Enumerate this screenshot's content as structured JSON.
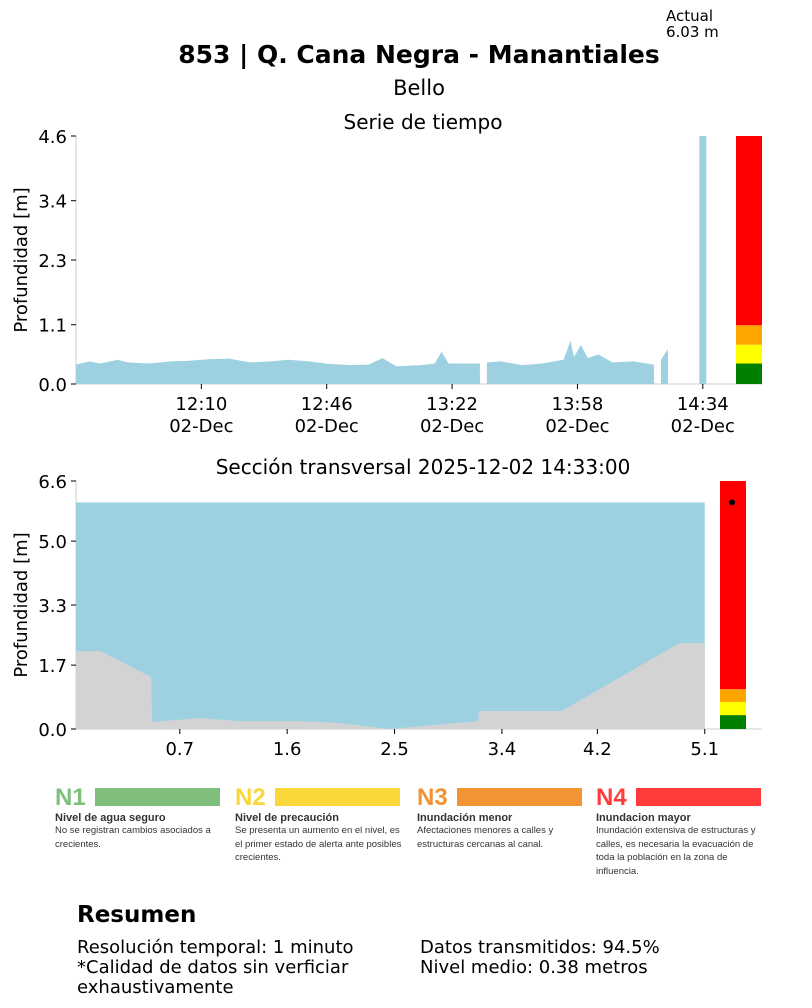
{
  "header": {
    "title": "853 | Q. Cana Negra - Manantiales",
    "subtitle": "Bello",
    "actual_label": "Actual",
    "actual_value": "6.03 m"
  },
  "chart_data": [
    {
      "type": "area",
      "title": "Serie de tiempo",
      "ylabel": "Profundidad [m]",
      "xlabel": "",
      "ylim": [
        0,
        4.6
      ],
      "yticks": [
        "0.0",
        "1.1",
        "2.3",
        "3.4",
        "4.6"
      ],
      "xlim": [
        "11:34",
        "14:51"
      ],
      "xticks": [
        {
          "t": "12:10",
          "label": "12:10",
          "sub": "02-Dec"
        },
        {
          "t": "12:46",
          "label": "12:46",
          "sub": "02-Dec"
        },
        {
          "t": "13:22",
          "label": "13:22",
          "sub": "02-Dec"
        },
        {
          "t": "13:58",
          "label": "13:58",
          "sub": "02-Dec"
        },
        {
          "t": "14:34",
          "label": "14:34",
          "sub": "02-Dec"
        }
      ],
      "series": [
        [
          "11:34",
          0.36
        ],
        [
          "11:38",
          0.42
        ],
        [
          "11:41",
          0.38
        ],
        [
          "11:46",
          0.45
        ],
        [
          "11:49",
          0.4
        ],
        [
          "11:55",
          0.38
        ],
        [
          "12:01",
          0.42
        ],
        [
          "12:06",
          0.43
        ],
        [
          "12:12",
          0.46
        ],
        [
          "12:18",
          0.47
        ],
        [
          "12:24",
          0.4
        ],
        [
          "12:30",
          0.42
        ],
        [
          "12:35",
          0.45
        ],
        [
          "12:41",
          0.42
        ],
        [
          "12:47",
          0.37
        ],
        [
          "12:53",
          0.35
        ],
        [
          "12:58",
          0.36
        ],
        [
          "13:02",
          0.48
        ],
        [
          "13:06",
          0.33
        ],
        [
          "13:13",
          0.35
        ],
        [
          "13:17",
          0.38
        ],
        [
          "13:19",
          0.6
        ],
        [
          "13:21",
          0.38
        ],
        [
          "13:30",
          0.38
        ],
        [
          "13:31",
          null
        ],
        [
          "13:32",
          0.4
        ],
        [
          "13:36",
          0.42
        ],
        [
          "13:42",
          0.35
        ],
        [
          "13:48",
          0.38
        ],
        [
          "13:54",
          0.45
        ],
        [
          "13:56",
          0.8
        ],
        [
          "13:57",
          0.5
        ],
        [
          "13:59",
          0.72
        ],
        [
          "14:01",
          0.48
        ],
        [
          "14:04",
          0.55
        ],
        [
          "14:08",
          0.4
        ],
        [
          "14:14",
          0.42
        ],
        [
          "14:20",
          0.36
        ],
        [
          "14:21",
          null
        ],
        [
          "14:22",
          0.45
        ],
        [
          "14:24",
          0.65
        ],
        [
          "14:25",
          null
        ],
        [
          "14:33",
          4.6
        ],
        [
          "14:35",
          4.6
        ],
        [
          "14:35",
          null
        ]
      ],
      "thresholds": [
        0.38,
        0.73,
        1.09,
        4.6
      ]
    },
    {
      "type": "area",
      "title": "Sección transversal 2025-12-02 14:33:00",
      "ylabel": "Profundidad [m]",
      "xlabel": "",
      "ylim": [
        0,
        6.6
      ],
      "xlim": [
        -0.17,
        5.58
      ],
      "yticks": [
        "0.0",
        "1.7",
        "3.3",
        "5.0",
        "6.6"
      ],
      "xticks": [
        "0.7",
        "1.6",
        "2.5",
        "3.4",
        "4.2",
        "5.1"
      ],
      "water_level": 6.03,
      "water_x": [
        -0.17,
        5.1
      ],
      "terrain": [
        [
          -0.17,
          2.07
        ],
        [
          0.04,
          2.07
        ],
        [
          0.46,
          1.38
        ],
        [
          0.47,
          0.19
        ],
        [
          0.87,
          0.29
        ],
        [
          1.2,
          0.21
        ],
        [
          1.7,
          0.21
        ],
        [
          2.04,
          0.16
        ],
        [
          2.46,
          0.0
        ],
        [
          3.2,
          0.21
        ],
        [
          3.21,
          0.48
        ],
        [
          3.9,
          0.48
        ],
        [
          4.89,
          2.29
        ],
        [
          5.1,
          2.29
        ]
      ],
      "thresholds": [
        0.37,
        0.72,
        1.06,
        6.6
      ]
    }
  ],
  "colors": {
    "water": "#9dd1e1",
    "terrain": "#d3d3d3",
    "n1": "#008000",
    "n2": "#ffff00",
    "n3": "#ffa500",
    "n4": "#ff0000"
  },
  "legend": [
    {
      "code": "N1",
      "name": "Nivel de agua seguro",
      "desc": "No se registran cambios asociados a crecientes.",
      "color": "#7fbf7b"
    },
    {
      "code": "N2",
      "name": "Nivel de precaución",
      "desc": "Se presenta un aumento en el nivel, es el primer estado de alerta ante posibles crecientes.",
      "color": "#f9d73a"
    },
    {
      "code": "N3",
      "name": "Inundación menor",
      "desc": "Afectaciones menores a calles y estructuras cercanas al canal.",
      "color": "#f29434"
    },
    {
      "code": "N4",
      "name": "Inundacion mayor",
      "desc": "Inundación extensiva de estructuras y calles, es necesaria la evacuación de toda la población en la zona de influencia.",
      "color": "#ff3b3b"
    }
  ],
  "summary": {
    "title": "Resumen",
    "left": [
      "Resolución temporal: 1 minuto",
      "*Calidad de datos sin verficiar",
      "exhaustivamente"
    ],
    "right": [
      "Datos transmitidos: 94.5%",
      "Nivel medio: 0.38 metros"
    ]
  }
}
